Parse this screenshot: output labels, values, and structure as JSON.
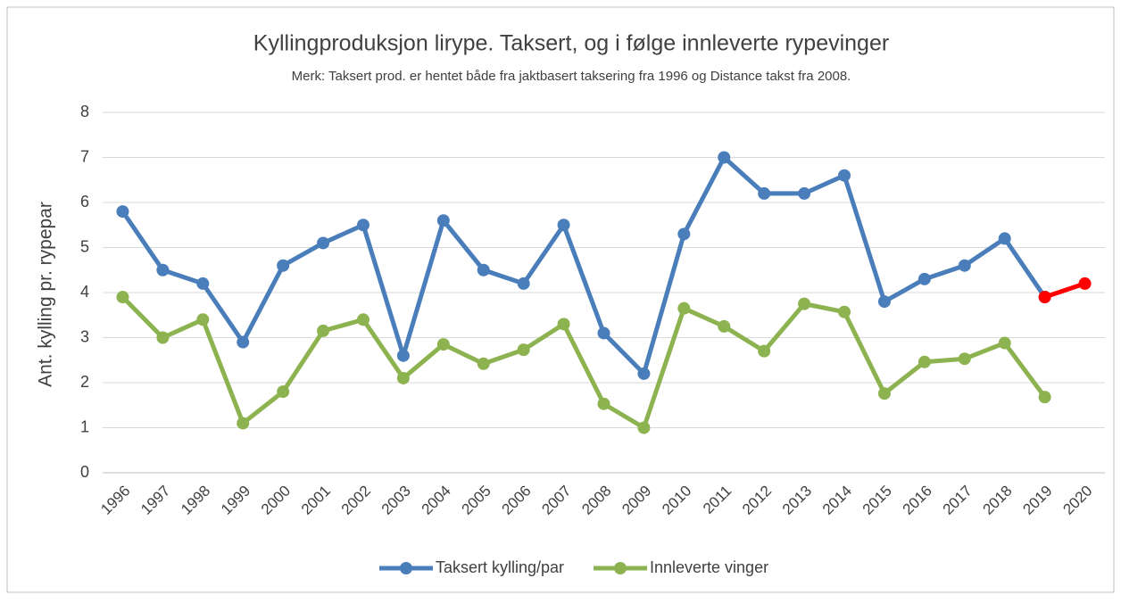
{
  "chart_data": {
    "type": "line",
    "title": "Kyllingproduksjon lirype. Taksert, og i følge innleverte rypevinger",
    "subtitle": "Merk: Taksert prod. er hentet både fra jaktbasert taksering fra 1996 og Distance takst fra 2008.",
    "y_label": "Ant. kylling pr. rypepar",
    "categories": [
      "1996",
      "1997",
      "1998",
      "1999",
      "2000",
      "2001",
      "2002",
      "2003",
      "2004",
      "2005",
      "2006",
      "2007",
      "2008",
      "2009",
      "2010",
      "2011",
      "2012",
      "2013",
      "2014",
      "2015",
      "2016",
      "2017",
      "2018",
      "2019",
      "2020"
    ],
    "series": [
      {
        "name": "Taksert kylling/par",
        "color": "#4a7ebb",
        "values": [
          5.8,
          4.5,
          4.2,
          2.9,
          4.6,
          5.1,
          5.5,
          2.6,
          5.6,
          4.5,
          4.2,
          5.5,
          3.1,
          2.2,
          5.3,
          7.0,
          6.2,
          6.2,
          6.6,
          3.8,
          4.3,
          4.6,
          5.2,
          3.9,
          null
        ]
      },
      {
        "name": "Innleverte vinger",
        "color": "#8db351",
        "values": [
          3.9,
          3.0,
          3.4,
          1.1,
          1.8,
          3.15,
          3.4,
          2.1,
          2.85,
          2.42,
          2.73,
          3.3,
          1.53,
          1.0,
          3.65,
          3.25,
          2.7,
          3.75,
          3.57,
          1.76,
          2.46,
          2.53,
          2.88,
          1.68,
          null
        ]
      },
      {
        "color": "#ff0000",
        "values": [
          null,
          null,
          null,
          null,
          null,
          null,
          null,
          null,
          null,
          null,
          null,
          null,
          null,
          null,
          null,
          null,
          null,
          null,
          null,
          null,
          null,
          null,
          null,
          3.9,
          4.2
        ]
      }
    ],
    "ylim": [
      0,
      8
    ],
    "yticks": [
      0,
      1,
      2,
      3,
      4,
      5,
      6,
      7,
      8
    ],
    "grid": true,
    "legend": "bottom"
  }
}
